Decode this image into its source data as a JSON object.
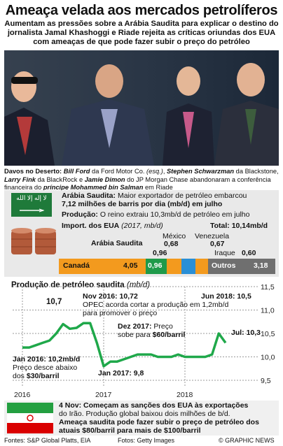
{
  "title": "Ameaça velada aos mercados petrolíferos",
  "subtitle": "Aumentam as pressões sobre a Arábia Saudita para explicar o destino do jornalista Jamal Khashoggi e Riade rejeita as críticas oriundas dos EUA com ameaças de que pode fazer subir o preço do petróleo",
  "caption": {
    "p1": "Davos no Deserto: ",
    "n1": "Bill Ford",
    "p2": " da Ford Motor Co. ",
    "p3": "(esq.)",
    "p4": ", ",
    "n2": "Stephen Schwarzman",
    "p5": " da Blackstone, ",
    "n3": "Larry Fink",
    "p6": " da BlackRock e ",
    "n4": "Jamie Dimon",
    "p7": " do JP Morgan Chase abandonaram a conferência financeira do ",
    "n5": "príncipe Mohammed bin Salman",
    "p8": " em Riade"
  },
  "saudi": {
    "flag_text": "لا إله إلا الله",
    "line1_label": "Arábia Saudita:",
    "line1_text": " Maior exportador de petróleo embarcou",
    "line2": "7,12 milhões de barris por dia (mb/d) em julho",
    "line3_label": "Produção:",
    "line3_text": " O reino extraiu 10,3mb/d de petróleo em julho",
    "imports_label": "Import. dos EUA",
    "imports_period": " (2017, mb/d)",
    "total": "Total: 10,14mb/d"
  },
  "imports": {
    "bars": [
      {
        "label": "Canadá",
        "value": "4,05",
        "color": "#f39a1e"
      },
      {
        "label": "Arábia Saudita",
        "value": "0,96",
        "color": "#1f9a4a"
      },
      {
        "label": "México",
        "value": "0,68",
        "color": "#f39a1e"
      },
      {
        "label": "Venezuela",
        "value": "0,67",
        "color": "#2a8fd6"
      },
      {
        "label": "Iraque",
        "value": "0,60",
        "color": "#f39a1e"
      },
      {
        "label": "Outros",
        "value": "3,18",
        "color": "#6f6f6f"
      }
    ]
  },
  "chart_data": {
    "type": "line",
    "title": "Produção de petróleo saudita",
    "unit": "(mb/d)",
    "x": [
      "2016-01",
      "2016-02",
      "2016-03",
      "2016-04",
      "2016-05",
      "2016-06",
      "2016-07",
      "2016-08",
      "2016-09",
      "2016-10",
      "2016-11",
      "2016-12",
      "2017-01",
      "2017-02",
      "2017-03",
      "2017-04",
      "2017-05",
      "2017-06",
      "2017-07",
      "2017-08",
      "2017-09",
      "2017-10",
      "2017-11",
      "2017-12",
      "2018-01",
      "2018-02",
      "2018-03",
      "2018-04",
      "2018-05",
      "2018-06",
      "2018-07"
    ],
    "values": [
      10.2,
      10.2,
      10.25,
      10.3,
      10.35,
      10.5,
      10.7,
      10.6,
      10.62,
      10.72,
      10.72,
      10.3,
      9.8,
      9.9,
      9.9,
      9.95,
      10.0,
      10.05,
      10.05,
      10.05,
      10.0,
      10.0,
      10.0,
      10.05,
      10.0,
      10.0,
      10.0,
      10.0,
      10.05,
      10.5,
      10.3
    ],
    "ylim": [
      9.5,
      11.5
    ],
    "yticks": [
      "11,5",
      "11,0",
      "10,5",
      "10,0",
      "9,5"
    ],
    "xticks": [
      "2016",
      "2017",
      "2018"
    ],
    "grid": true,
    "annotations": {
      "peak107": "10,7",
      "nov_title": "Nov 2016: 10,72",
      "nov_text": "OPEC acorda cortar a produção em 1,2mb/d para promover o preço",
      "jun_title": "Jun 2018: 10,5",
      "jul": "Jul: 10,3",
      "dec_title": "Dez 2017:",
      "dec_text1": "Preço",
      "dec_text2": "sobe para ",
      "dec_price": "$60/barril",
      "jan16_title": "Jan 2016: 10,2mb/d",
      "jan16_text1": "Preço desce abaixo",
      "jan16_text2": "dos ",
      "jan16_price": "$30/barril",
      "jan17": "Jan 2017: 9,8"
    }
  },
  "iran": {
    "line1": "4 Nov: Começam as sanções dos EUA às exportações",
    "line2": "do Irão. Produção global baixou dois milhões de b/d.",
    "line3": "Ameaça saudita pode fazer subir o preço de petróleo dos",
    "line4": "atuais $80/barril para mais de $100/barril"
  },
  "footer": {
    "sources": "Fontes: S&P Global Platts, EIA",
    "photos": "Fotos: Getty Images",
    "credit": "© GRAPHIC NEWS"
  },
  "colors": {
    "green": "#1fa84a",
    "orange": "#f39a1e",
    "blue": "#2a8fd6",
    "grey": "#6f6f6f",
    "iran_red": "#d0232a"
  }
}
